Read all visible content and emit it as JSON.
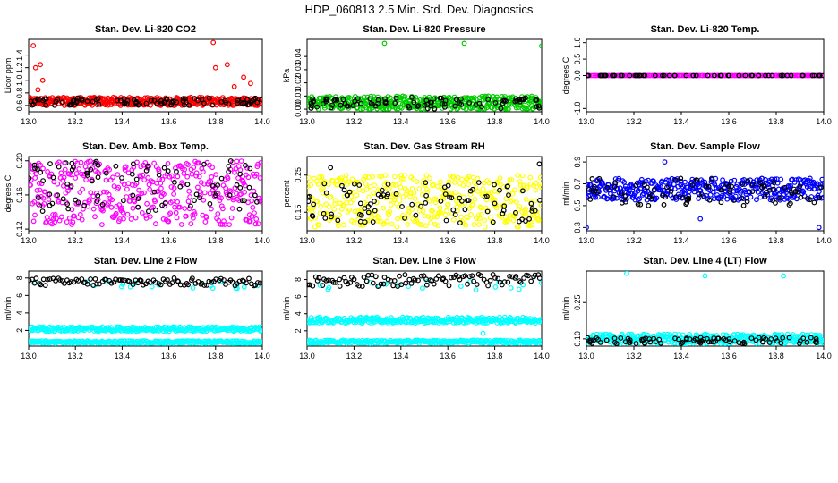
{
  "page_title": "HDP_060813  2.5 Min. Std. Dev. Diagnostics",
  "chart_data": [
    {
      "type": "scatter",
      "title": "Stan. Dev. Li-820 CO2",
      "ylabel": "Licor ppm",
      "xlabel": "",
      "xlim": [
        13.0,
        14.0
      ],
      "ylim": [
        0.5,
        1.65
      ],
      "xticks": [
        "13.0",
        "13.2",
        "13.4",
        "13.6",
        "13.8",
        "14.0"
      ],
      "yticks": [
        "0.6",
        "0.8",
        "1.0",
        "1.2",
        "1.4"
      ],
      "series": [
        {
          "color": "#ff0000",
          "n": 400,
          "lo": 0.6,
          "hi": 0.73,
          "spread": "band",
          "sparse": false,
          "outliers": [
            [
              13.02,
              1.55
            ],
            [
              13.05,
              1.25
            ],
            [
              13.03,
              1.2
            ],
            [
              13.06,
              1.0
            ],
            [
              13.04,
              0.85
            ],
            [
              13.8,
              1.2
            ],
            [
              13.85,
              1.25
            ],
            [
              13.79,
              1.6
            ],
            [
              13.92,
              1.05
            ],
            [
              13.95,
              0.95
            ],
            [
              13.88,
              0.9
            ]
          ]
        },
        {
          "color": "#000000",
          "n": 90,
          "lo": 0.6,
          "hi": 0.72,
          "spread": "band",
          "sparse": true,
          "outliers": []
        }
      ]
    },
    {
      "type": "scatter",
      "title": "Stan. Dev. Li-820 Pressure",
      "ylabel": "kPa",
      "xlabel": "",
      "xlim": [
        13.0,
        14.0
      ],
      "ylim": [
        -0.002,
        0.053
      ],
      "xticks": [
        "13.0",
        "13.2",
        "13.4",
        "13.6",
        "13.8",
        "14.0"
      ],
      "yticks": [
        "0.00",
        "0.01",
        "0.02",
        "0.03",
        "0.04"
      ],
      "series": [
        {
          "color": "#00cc00",
          "n": 400,
          "lo": 0.0,
          "hi": 0.01,
          "spread": "band",
          "sparse": false,
          "outliers": [
            [
              13.33,
              0.05
            ],
            [
              13.67,
              0.05
            ],
            [
              14.0,
              0.048
            ]
          ]
        },
        {
          "color": "#000000",
          "n": 90,
          "lo": 0.0,
          "hi": 0.009,
          "spread": "band",
          "sparse": true,
          "outliers": []
        }
      ]
    },
    {
      "type": "scatter",
      "title": "Stan. Dev. Li-820 Temp.",
      "ylabel": "degrees C",
      "xlabel": "",
      "xlim": [
        13.0,
        14.0
      ],
      "ylim": [
        -1.1,
        1.1
      ],
      "xticks": [
        "13.0",
        "13.2",
        "13.4",
        "13.6",
        "13.8",
        "14.0"
      ],
      "yticks": [
        "-1.0",
        "0.0",
        "0.5",
        "1.0"
      ],
      "series": [
        {
          "color": "#ff00ff",
          "n": 160,
          "lo": 0.0,
          "hi": 0.0,
          "spread": "flat",
          "sparse": false,
          "outliers": []
        },
        {
          "color": "#000000",
          "n": 60,
          "lo": 0.0,
          "hi": 0.0,
          "spread": "flat",
          "sparse": true,
          "outliers": []
        }
      ]
    },
    {
      "type": "scatter",
      "title": "Stan. Dev. Amb. Box Temp.",
      "ylabel": "degrees C",
      "xlabel": "",
      "xlim": [
        13.0,
        14.0
      ],
      "ylim": [
        0.118,
        0.205
      ],
      "xticks": [
        "13.0",
        "13.2",
        "13.4",
        "13.6",
        "13.8",
        "14.0"
      ],
      "yticks": [
        "0.12",
        "0.16",
        "0.20"
      ],
      "series": [
        {
          "color": "#ff00ff",
          "n": 400,
          "lo": 0.125,
          "hi": 0.2,
          "spread": "band",
          "sparse": false,
          "outliers": []
        },
        {
          "color": "#000000",
          "n": 90,
          "lo": 0.14,
          "hi": 0.2,
          "spread": "band",
          "sparse": true,
          "outliers": []
        }
      ]
    },
    {
      "type": "scatter",
      "title": "Stan. Dev. Gas Stream RH",
      "ylabel": "percent",
      "xlabel": "",
      "xlim": [
        13.0,
        14.0
      ],
      "ylim": [
        0.1,
        0.3
      ],
      "xticks": [
        "13.0",
        "13.2",
        "13.4",
        "13.6",
        "13.8",
        "14.0"
      ],
      "yticks": [
        "0.15",
        "0.25"
      ],
      "series": [
        {
          "color": "#ffff00",
          "n": 400,
          "lo": 0.11,
          "hi": 0.25,
          "spread": "band",
          "sparse": false,
          "outliers": []
        },
        {
          "color": "#000000",
          "n": 90,
          "lo": 0.12,
          "hi": 0.23,
          "spread": "band",
          "sparse": true,
          "outliers": [
            [
              13.1,
              0.27
            ],
            [
              13.99,
              0.28
            ]
          ]
        }
      ]
    },
    {
      "type": "scatter",
      "title": "Stan. Dev. Sample Flow",
      "ylabel": "ml/min",
      "xlabel": "",
      "xlim": [
        13.0,
        14.0
      ],
      "ylim": [
        0.27,
        0.95
      ],
      "xticks": [
        "13.0",
        "13.2",
        "13.4",
        "13.6",
        "13.8",
        "14.0"
      ],
      "yticks": [
        "0.3",
        "0.5",
        "0.7",
        "0.9"
      ],
      "series": [
        {
          "color": "#0000ff",
          "n": 400,
          "lo": 0.55,
          "hi": 0.75,
          "spread": "band",
          "sparse": false,
          "outliers": [
            [
              13.33,
              0.9
            ],
            [
              13.0,
              0.3
            ],
            [
              13.98,
              0.3
            ],
            [
              13.48,
              0.38
            ]
          ]
        },
        {
          "color": "#000000",
          "n": 90,
          "lo": 0.5,
          "hi": 0.75,
          "spread": "band",
          "sparse": true,
          "outliers": []
        }
      ]
    },
    {
      "type": "scatter",
      "title": "Stan. Dev. Line 2 Flow",
      "ylabel": "ml/min",
      "xlabel": "",
      "xlim": [
        13.0,
        14.0
      ],
      "ylim": [
        0.2,
        8.8
      ],
      "xticks": [
        "13.0",
        "13.2",
        "13.4",
        "13.6",
        "13.8",
        "14.0"
      ],
      "yticks": [
        "2",
        "4",
        "6",
        "8"
      ],
      "series": [
        {
          "color": "#00ffff",
          "n": 300,
          "lo": 1.9,
          "hi": 2.4,
          "spread": "band",
          "sparse": false,
          "outliers": []
        },
        {
          "color": "#00ffff",
          "n": 300,
          "lo": 0.5,
          "hi": 0.8,
          "spread": "band",
          "sparse": false,
          "outliers": []
        },
        {
          "color": "#00ffff",
          "n": 20,
          "lo": 6.8,
          "hi": 7.6,
          "spread": "band",
          "sparse": true,
          "outliers": []
        },
        {
          "color": "#000000",
          "n": 100,
          "lo": 7.1,
          "hi": 8.0,
          "spread": "band",
          "sparse": false,
          "outliers": []
        }
      ]
    },
    {
      "type": "scatter",
      "title": "Stan. Dev. Line 3 Flow",
      "ylabel": "ml/min",
      "xlabel": "",
      "xlim": [
        13.0,
        14.0
      ],
      "ylim": [
        0.2,
        9.0
      ],
      "xticks": [
        "13.0",
        "13.2",
        "13.4",
        "13.6",
        "13.8",
        "14.0"
      ],
      "yticks": [
        "2",
        "4",
        "6",
        "8"
      ],
      "series": [
        {
          "color": "#00ffff",
          "n": 300,
          "lo": 2.9,
          "hi": 3.6,
          "spread": "band",
          "sparse": false,
          "outliers": [
            [
              13.75,
              1.7
            ]
          ]
        },
        {
          "color": "#00ffff",
          "n": 300,
          "lo": 0.5,
          "hi": 0.9,
          "spread": "band",
          "sparse": false,
          "outliers": []
        },
        {
          "color": "#00ffff",
          "n": 20,
          "lo": 6.8,
          "hi": 7.8,
          "spread": "band",
          "sparse": true,
          "outliers": []
        },
        {
          "color": "#000000",
          "n": 100,
          "lo": 7.2,
          "hi": 8.6,
          "spread": "band",
          "sparse": false,
          "outliers": []
        }
      ]
    },
    {
      "type": "scatter",
      "title": "Stan. Dev. Line 4 (LT) Flow",
      "ylabel": "ml/min",
      "xlabel": "",
      "xlim": [
        13.0,
        14.0
      ],
      "ylim": [
        0.07,
        0.38
      ],
      "xticks": [
        "13.0",
        "13.2",
        "13.4",
        "13.6",
        "13.8",
        "14.0"
      ],
      "yticks": [
        "0.10",
        "0.25"
      ],
      "series": [
        {
          "color": "#00ffff",
          "n": 350,
          "lo": 0.08,
          "hi": 0.12,
          "spread": "band",
          "sparse": false,
          "outliers": [
            [
              13.17,
              0.37
            ],
            [
              13.5,
              0.36
            ],
            [
              13.83,
              0.36
            ]
          ]
        },
        {
          "color": "#000000",
          "n": 90,
          "lo": 0.08,
          "hi": 0.105,
          "spread": "band",
          "sparse": true,
          "outliers": []
        }
      ]
    }
  ]
}
